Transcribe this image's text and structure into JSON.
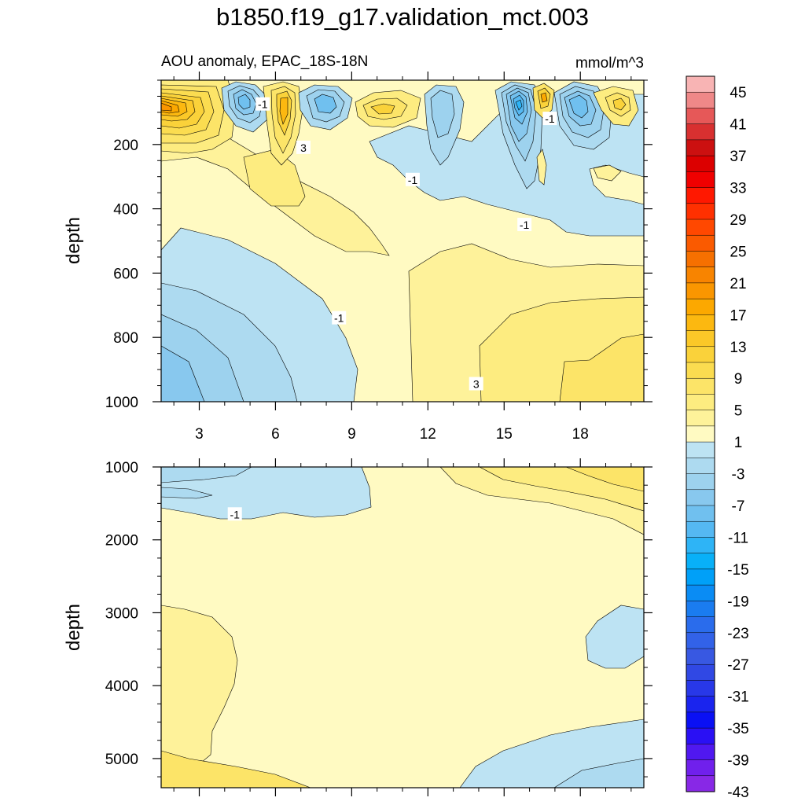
{
  "title": "b1850.f19_g17.validation_mct.003",
  "chart_data": {
    "type": "contour",
    "title": "b1850.f19_g17.validation_mct.003",
    "variable_label": "AOU anomaly, EPAC_18S-18N",
    "units_label": "mmol/m^3",
    "ylabel": "depth",
    "xlim": [
      1.5,
      20.5
    ],
    "xticks": [
      3,
      6,
      9,
      12,
      15,
      18
    ],
    "upper_panel": {
      "ylim": [
        0,
        1000
      ],
      "yticks": [
        200,
        400,
        600,
        800,
        1000
      ],
      "contour_labels": [
        {
          "text": "-1",
          "x": 5.5,
          "y": 75
        },
        {
          "text": "3",
          "x": 7.1,
          "y": 210
        },
        {
          "text": "-1",
          "x": 16.8,
          "y": 120
        },
        {
          "text": "-1",
          "x": 11.4,
          "y": 310
        },
        {
          "text": "-1",
          "x": 15.8,
          "y": 450
        },
        {
          "text": "-1",
          "x": 8.5,
          "y": 740
        },
        {
          "text": "3",
          "x": 13.9,
          "y": 945
        }
      ]
    },
    "lower_panel": {
      "ylim": [
        1000,
        5400
      ],
      "yticks": [
        1000,
        2000,
        3000,
        4000,
        5000
      ],
      "contour_labels": [
        {
          "text": "-1",
          "x": 4.4,
          "y": 1650
        }
      ]
    },
    "colorbar": {
      "labels": [
        "45",
        "41",
        "37",
        "33",
        "29",
        "25",
        "21",
        "17",
        "13",
        "9",
        "5",
        "1",
        "-3",
        "-7",
        "-11",
        "-15",
        "-19",
        "-23",
        "-27",
        "-31",
        "-35",
        "-39",
        "-43"
      ],
      "colors": [
        "#f8b4b4",
        "#ef8888",
        "#e65858",
        "#d83030",
        "#cc1010",
        "#dc0000",
        "#f00000",
        "#ff1800",
        "#ff3000",
        "#ff4800",
        "#fa5a00",
        "#f67000",
        "#f88400",
        "#fa9600",
        "#fca800",
        "#fcb810",
        "#fbc828",
        "#fad23a",
        "#fbdc50",
        "#fce468",
        "#fdec80",
        "#fef29a",
        "#fffac2",
        "#bde3f3",
        "#addaf0",
        "#9dd2ee",
        "#88c8ee",
        "#70c0ef",
        "#55b8f2",
        "#2eb4f6",
        "#08b0f8",
        "#00a0f8",
        "#0a8cf4",
        "#1a7cf0",
        "#2a6cec",
        "#3262e8",
        "#3858e2",
        "#3048e4",
        "#2838e8",
        "#1a24ee",
        "#0a10f4",
        "#2a10f4",
        "#5018f0",
        "#7020ec",
        "#8828e6"
      ]
    }
  }
}
